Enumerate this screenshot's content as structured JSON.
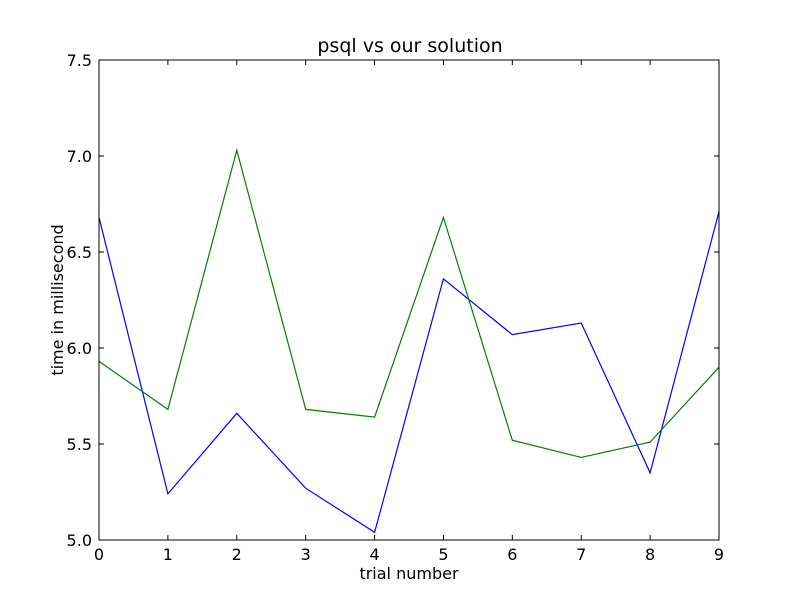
{
  "chart_data": {
    "type": "line",
    "title": "psql vs our solution",
    "xlabel": "trial number",
    "ylabel": "time in millisecond",
    "x": [
      0,
      1,
      2,
      3,
      4,
      5,
      6,
      7,
      8,
      9
    ],
    "xlim": [
      0,
      9
    ],
    "ylim": [
      5.0,
      7.5
    ],
    "xticks": [
      "0",
      "1",
      "2",
      "3",
      "4",
      "5",
      "6",
      "7",
      "8",
      "9"
    ],
    "yticks": [
      "5.0",
      "5.5",
      "6.0",
      "6.5",
      "7.0",
      "7.5"
    ],
    "grid": false,
    "legend": "none",
    "series": [
      {
        "color": "#0000ff",
        "values": [
          6.68,
          5.24,
          5.66,
          5.27,
          5.04,
          6.36,
          6.07,
          6.13,
          5.35,
          6.71
        ]
      },
      {
        "color": "#008000",
        "values": [
          5.93,
          5.68,
          7.03,
          5.68,
          5.64,
          6.68,
          5.52,
          5.43,
          5.51,
          5.9
        ]
      }
    ]
  }
}
